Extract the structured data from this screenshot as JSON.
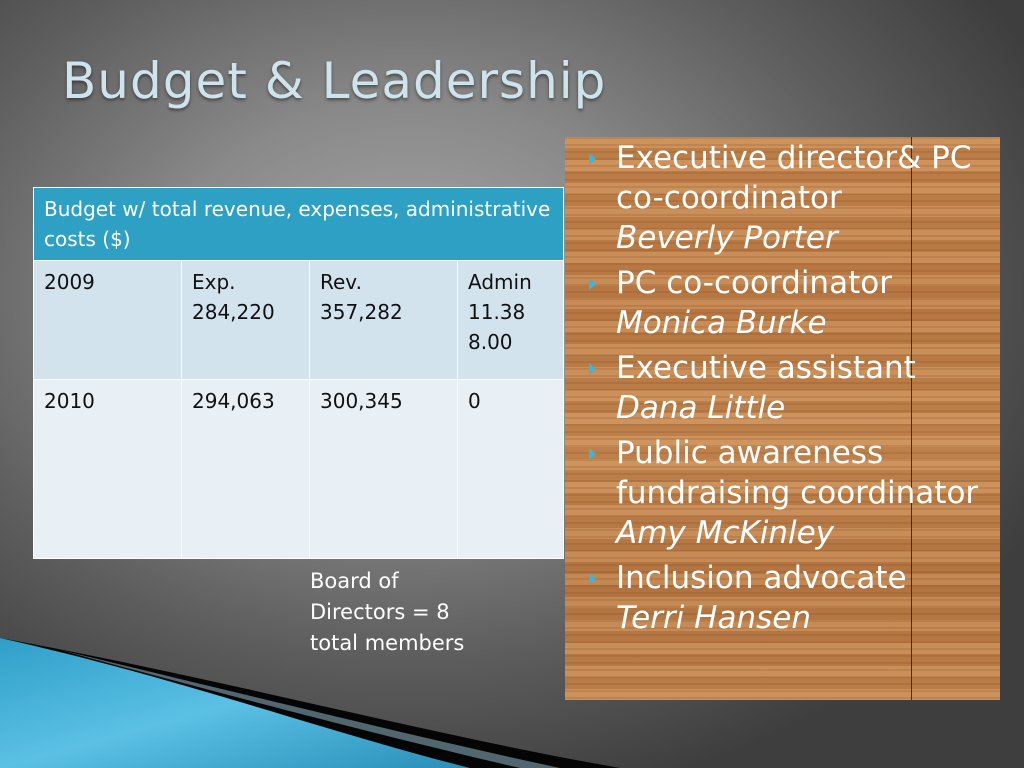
{
  "slide": {
    "title": "Budget & Leadership"
  },
  "budget_table": {
    "header": "Budget w/ total revenue, expenses, administrative costs ($)",
    "rows": [
      {
        "year": "2009",
        "expenses": [
          "Exp.",
          "284,220"
        ],
        "revenue": [
          "Rev.",
          "357,282"
        ],
        "admin": [
          "Admin",
          "11.38",
          "8.00"
        ]
      },
      {
        "year": "2010",
        "expenses": [
          "294,063"
        ],
        "revenue": [
          "300,345"
        ],
        "admin": [
          "0"
        ]
      }
    ]
  },
  "board_note": {
    "text": " Board of\nDirectors = 8\ntotal members"
  },
  "leadership": [
    {
      "role": "Executive director& PC co-coordinator",
      "name": "Beverly Porter"
    },
    {
      "role": "PC co-coordinator",
      "name": "Monica Burke"
    },
    {
      "role": "Executive assistant",
      "name": "Dana Little"
    },
    {
      "role": "Public awareness fundraising coordinator",
      "name": "Amy McKinley"
    },
    {
      "role": "Inclusion advocate",
      "name": "Terri Hansen"
    }
  ],
  "colors": {
    "header_fill": "#2ea0c4",
    "row_fill_2009": "#d3e3ee",
    "row_fill_2010": "#e8f0f6",
    "bullet": "#3fb3d8",
    "wood": "#c8874f"
  }
}
